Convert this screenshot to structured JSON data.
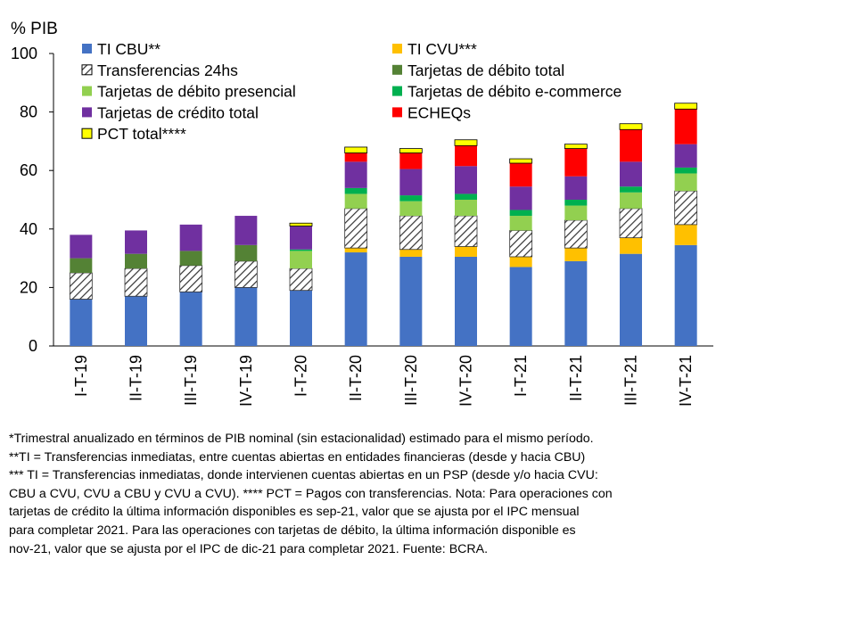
{
  "chart_data": {
    "type": "bar",
    "stacked": true,
    "ylabel": "% PIB",
    "ylim": [
      0,
      100
    ],
    "yticks": [
      0,
      20,
      40,
      60,
      80,
      100
    ],
    "legend_position": "top-left",
    "categories": [
      "I-T-19",
      "II-T-19",
      "III-T-19",
      "IV-T-19",
      "I-T-20",
      "II-T-20",
      "III-T-20",
      "IV-T-20",
      "I-T-21",
      "II-T-21",
      "III-T-21",
      "IV-T-21"
    ],
    "series": [
      {
        "name": "TI CBU**",
        "color": "#4472c4",
        "pattern": "solid",
        "values": [
          16,
          17,
          18.5,
          20,
          19,
          32,
          30.5,
          30.5,
          27,
          29,
          31.5,
          34.5
        ]
      },
      {
        "name": "TI CVU***",
        "color": "#ffc000",
        "pattern": "solid",
        "values": [
          0,
          0,
          0,
          0,
          0,
          1.5,
          2.5,
          3.5,
          3.5,
          4.5,
          5.5,
          7
        ]
      },
      {
        "name": "Transferencias 24hs",
        "color": "#ffffff",
        "pattern": "hatch",
        "values": [
          9,
          9.5,
          9,
          9,
          7.5,
          13.5,
          11.5,
          10.5,
          9,
          9.5,
          10,
          11.5
        ]
      },
      {
        "name": "Tarjetas de débito total",
        "color": "#548235",
        "pattern": "solid",
        "values": [
          5,
          5,
          5,
          5.5,
          0,
          0,
          0,
          0,
          0,
          0,
          0,
          0
        ]
      },
      {
        "name": "Tarjetas de débito presencial",
        "color": "#92d050",
        "pattern": "solid",
        "values": [
          0,
          0,
          0,
          0,
          6,
          5,
          5,
          5.5,
          5,
          5,
          5.5,
          6
        ]
      },
      {
        "name": "Tarjetas de débito e-commerce",
        "color": "#00b050",
        "pattern": "solid",
        "values": [
          0,
          0,
          0,
          0,
          0.5,
          2,
          2,
          2,
          2,
          2,
          2,
          2
        ]
      },
      {
        "name": "Tarjetas de crédito total",
        "color": "#7030a0",
        "pattern": "solid",
        "values": [
          8,
          8,
          9,
          10,
          8,
          9,
          9,
          9.5,
          8,
          8,
          8.5,
          8
        ]
      },
      {
        "name": "ECHEQs",
        "color": "#ff0000",
        "pattern": "solid",
        "values": [
          0,
          0,
          0,
          0,
          0,
          3,
          5.5,
          7,
          8,
          9.5,
          11,
          12
        ]
      },
      {
        "name": "PCT total****",
        "color": "#ffff00",
        "pattern": "solid",
        "values": [
          0,
          0,
          0,
          0,
          1,
          2,
          1.5,
          2,
          1.5,
          1.5,
          2,
          2
        ]
      }
    ]
  },
  "note_lines": [
    "*Trimestral anualizado en términos de PIB nominal (sin estacionalidad) estimado para el mismo período.",
    "**TI = Transferencias inmediatas, entre cuentas abiertas en entidades financieras (desde y hacia CBU)",
    "*** TI = Transferencias inmediatas, donde intervienen cuentas abiertas en un PSP (desde y/o hacia CVU:",
    "CBU a CVU, CVU a CBU y CVU a CVU). **** PCT = Pagos con transferencias. Nota: Para operaciones con",
    "tarjetas de crédito la última información disponibles es sep-21, valor que se ajusta por el IPC mensual",
    "para completar 2021. Para las operaciones con tarjetas de débito, la última información disponible es",
    "nov-21, valor que se ajusta por el IPC de dic-21 para completar 2021. Fuente: BCRA."
  ]
}
